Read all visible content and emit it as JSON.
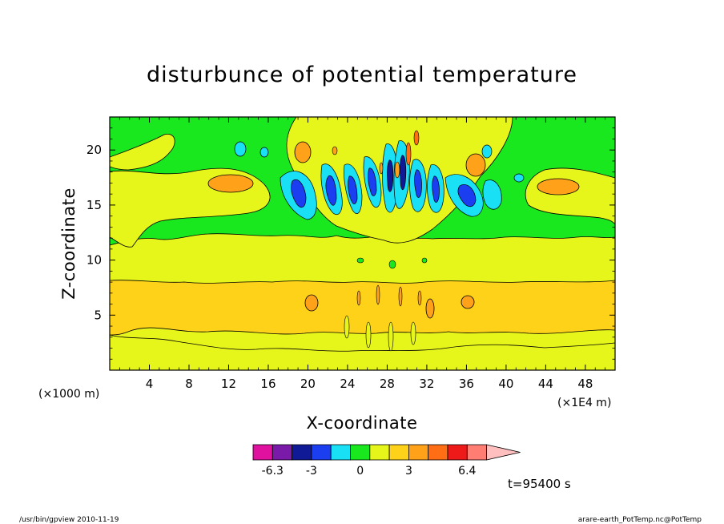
{
  "chart_data": {
    "type": "heatmap",
    "title": "disturbunce of potential temperature",
    "xlabel": "X-coordinate",
    "ylabel": "Z-coordinate",
    "x_unit": "(×1E4 m)",
    "y_unit": "(×1000 m)",
    "xlim": [
      0,
      51
    ],
    "ylim": [
      0,
      23
    ],
    "x_ticks": [
      4,
      8,
      12,
      16,
      20,
      24,
      28,
      32,
      36,
      40,
      44,
      48
    ],
    "y_ticks": [
      5,
      10,
      15,
      20
    ],
    "colorbar": {
      "levels": [
        "-6.3",
        "-3",
        "0",
        "3",
        "6.4"
      ],
      "colors": [
        "#e0119e",
        "#7a1aa8",
        "#111a96",
        "#1a3ef0",
        "#19e0f5",
        "#19e81f",
        "#e6f51a",
        "#ffd21a",
        "#ffa21a",
        "#ff6e14",
        "#ee1a1a",
        "#ff7d73",
        "#ffbfbf"
      ]
    },
    "bands": [
      {
        "name": "lower-yellow",
        "z_range": [
          0,
          3
        ],
        "color": "#e6f51a"
      },
      {
        "name": "orange-band",
        "z_range": [
          3,
          8
        ],
        "color": "#ffd21a"
      },
      {
        "name": "upper-yellow",
        "z_range": [
          8,
          11
        ],
        "color": "#e6f51a"
      },
      {
        "name": "green-upper",
        "z_range": [
          11,
          23
        ],
        "color": "#19e81f"
      }
    ],
    "annotation": "t=95400 s"
  },
  "footer": {
    "left": "/usr/bin/gpview   2010-11-19",
    "right": "arare-earth_PotTemp.nc@PotTemp"
  }
}
